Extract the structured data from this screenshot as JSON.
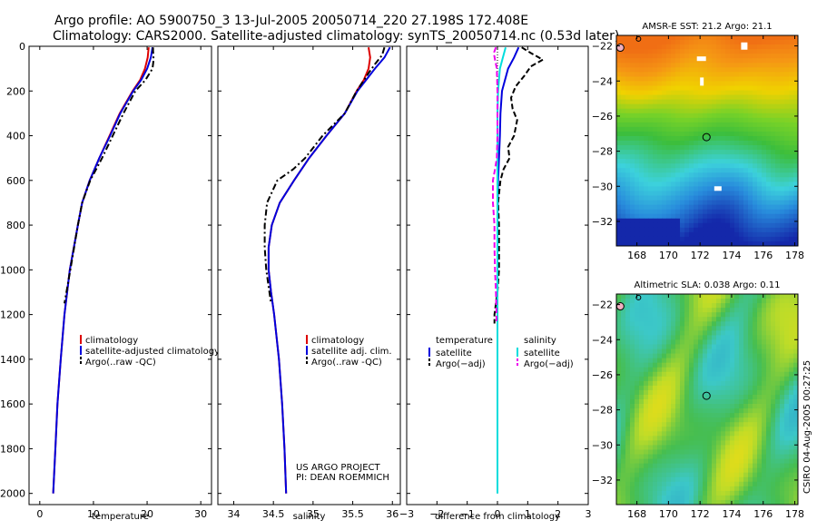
{
  "header": {
    "line1": "Argo profile: AO 5900750_3 13-Jul-2005 20050714_220 27.198S 172.408E",
    "line2": "Climatology: CARS2000. Satellite-adjusted climatology: synTS_20050714.nc (0.53d later)"
  },
  "credit": {
    "line1": "US ARGO PROJECT",
    "line2": "PI: DEAN ROEMMICH"
  },
  "side_label": "CSIRO 04-Aug-2005 00:27:25",
  "colors": {
    "climatology": "#dd0000",
    "satellite": "#0000dd",
    "argo": "#000000",
    "sal_sat": "#00dddd",
    "sal_adj": "#ee00ee"
  },
  "chart_data": [
    {
      "type": "line",
      "id": "temperature",
      "xlabel": "temperature",
      "xlim": [
        -2,
        32
      ],
      "ylim": [
        2050,
        0
      ],
      "xticks": [
        0,
        10,
        20,
        30
      ],
      "xtick_labels": [
        "0",
        "10",
        "20",
        "30"
      ],
      "yticks": [
        0,
        200,
        400,
        600,
        800,
        1000,
        1200,
        1400,
        1600,
        1800,
        2000
      ],
      "ytick_labels": [
        "0",
        "200",
        "400",
        "600",
        "800",
        "1000",
        "1200",
        "1400",
        "1600",
        "1800",
        "2000"
      ],
      "legend": [
        "climatology",
        "satellite-adjusted climatology",
        "Argo(..raw -QC)"
      ],
      "series": [
        {
          "name": "climatology",
          "style": "solid",
          "color": "#dd0000",
          "depth": [
            5,
            50,
            100,
            150,
            200,
            300,
            400,
            500,
            600,
            700,
            800,
            1000,
            1200,
            1400,
            1600,
            1800,
            2000
          ],
          "values": [
            20.3,
            20.1,
            19.6,
            18.7,
            17.3,
            14.9,
            13.0,
            11.1,
            9.3,
            7.9,
            7.1,
            5.6,
            4.6,
            3.9,
            3.3,
            2.9,
            2.5
          ]
        },
        {
          "name": "satellite-adjusted climatology",
          "style": "solid",
          "color": "#0000dd",
          "depth": [
            5,
            50,
            100,
            150,
            200,
            300,
            400,
            500,
            600,
            700,
            800,
            1000,
            1200,
            1400,
            1600,
            1800,
            2000
          ],
          "values": [
            21.0,
            20.7,
            20.0,
            18.9,
            17.4,
            15.0,
            13.1,
            11.1,
            9.3,
            7.9,
            7.1,
            5.6,
            4.6,
            3.9,
            3.3,
            2.9,
            2.5
          ]
        },
        {
          "name": "Argo(..raw -QC)",
          "style": "dashdot",
          "color": "#000000",
          "depth": [
            5,
            20,
            60,
            100,
            150,
            200,
            300,
            400,
            500,
            600,
            700,
            800,
            1000,
            1150
          ],
          "values": [
            21.1,
            21.1,
            21.2,
            21.0,
            19.7,
            17.8,
            15.6,
            13.6,
            11.6,
            9.4,
            7.9,
            7.1,
            5.7,
            4.6
          ]
        }
      ]
    },
    {
      "type": "line",
      "id": "salinity",
      "xlabel": "salinity",
      "xlim": [
        33.8,
        36.1
      ],
      "ylim": [
        2050,
        0
      ],
      "xticks": [
        34,
        34.5,
        35,
        35.5,
        36
      ],
      "xtick_labels": [
        "34",
        "34.5",
        "35",
        "35.5",
        "36"
      ],
      "legend": [
        "climatology",
        "satellite adj. clim.",
        "Argo(..raw -QC)"
      ],
      "series": [
        {
          "name": "climatology",
          "style": "solid",
          "color": "#dd0000",
          "depth": [
            5,
            50,
            100,
            150,
            200,
            300,
            400,
            500,
            600,
            700,
            800,
            900,
            1000,
            1100,
            1200,
            1400,
            1600,
            1800,
            2000
          ],
          "values": [
            35.7,
            35.72,
            35.7,
            35.64,
            35.55,
            35.4,
            35.17,
            34.95,
            34.76,
            34.58,
            34.48,
            34.44,
            34.44,
            34.47,
            34.51,
            34.57,
            34.61,
            34.64,
            34.66
          ]
        },
        {
          "name": "satellite adj. clim.",
          "style": "solid",
          "color": "#0000dd",
          "depth": [
            5,
            50,
            100,
            150,
            200,
            300,
            400,
            500,
            600,
            700,
            800,
            900,
            1000,
            1100,
            1200,
            1400,
            1600,
            1800,
            2000
          ],
          "values": [
            35.97,
            35.9,
            35.78,
            35.67,
            35.56,
            35.4,
            35.17,
            34.95,
            34.76,
            34.58,
            34.48,
            34.44,
            34.44,
            34.47,
            34.51,
            34.57,
            34.61,
            34.64,
            34.66
          ]
        },
        {
          "name": "Argo(..raw -QC)",
          "style": "dashdot",
          "color": "#000000",
          "depth": [
            5,
            40,
            80,
            120,
            200,
            300,
            400,
            500,
            550,
            600,
            700,
            800,
            900,
            1000,
            1100,
            1150
          ],
          "values": [
            35.9,
            35.87,
            35.78,
            35.7,
            35.55,
            35.4,
            35.12,
            34.9,
            34.75,
            34.55,
            34.42,
            34.39,
            34.39,
            34.41,
            34.45,
            34.47
          ]
        }
      ]
    },
    {
      "type": "line",
      "id": "difference",
      "xlabel": "difference from climatology",
      "xlim": [
        -3,
        3
      ],
      "ylim": [
        2050,
        0
      ],
      "xticks": [
        -3,
        -2,
        -1,
        0,
        1,
        2,
        3
      ],
      "xtick_labels": [
        "−3",
        "−2",
        "−1",
        "0",
        "1",
        "2",
        "3"
      ],
      "legend_left_title": "temperature",
      "legend_left": [
        "satellite",
        "Argo(−adj)"
      ],
      "legend_right_title": "salinity",
      "legend_right": [
        "satellite",
        "Argo(−adj)"
      ],
      "series": [
        {
          "name": "temperature satellite",
          "style": "solid",
          "color": "#0000dd",
          "depth": [
            5,
            50,
            100,
            200,
            300,
            400,
            500,
            600,
            800,
            1000,
            1200,
            1240
          ],
          "values": [
            0.7,
            0.55,
            0.35,
            0.15,
            0.1,
            0.08,
            0.05,
            0.02,
            0.0,
            0.0,
            0.0,
            0.0
          ]
        },
        {
          "name": "temperature Argo(-adj)",
          "style": "dashed",
          "color": "#000000",
          "depth": [
            5,
            30,
            60,
            90,
            130,
            180,
            230,
            280,
            330,
            400,
            450,
            500,
            550,
            600,
            700,
            800,
            900,
            1000,
            1100,
            1150,
            1200,
            1240
          ],
          "values": [
            0.8,
            1.1,
            1.5,
            1.1,
            0.9,
            0.6,
            0.45,
            0.5,
            0.65,
            0.55,
            0.35,
            0.4,
            0.2,
            0.1,
            0.02,
            0.05,
            0.05,
            0.05,
            0.0,
            -0.05,
            -0.1,
            -0.1
          ]
        },
        {
          "name": "salinity satellite",
          "style": "solid",
          "color": "#00dddd",
          "depth": [
            5,
            50,
            100,
            200,
            300,
            500,
            800,
            1200,
            1600,
            2000
          ],
          "values": [
            0.27,
            0.18,
            0.08,
            0.02,
            0.0,
            0.0,
            0.0,
            0.0,
            0.0,
            0.0
          ]
        },
        {
          "name": "salinity Argo(-adj)",
          "style": "dashed",
          "color": "#ee00ee",
          "depth": [
            5,
            30,
            60,
            100,
            200,
            300,
            400,
            500,
            550,
            600,
            700,
            800,
            900,
            1000,
            1100,
            1200,
            1240
          ],
          "values": [
            -0.05,
            -0.12,
            -0.08,
            -0.02,
            0.0,
            0.0,
            0.0,
            -0.02,
            -0.08,
            -0.15,
            -0.15,
            -0.1,
            -0.1,
            -0.08,
            -0.05,
            -0.03,
            -0.03
          ]
        }
      ]
    },
    {
      "type": "heatmap",
      "id": "sst-map",
      "title": "AMSR-E SST: 21.2 Argo: 21.1",
      "xlim": [
        166.7,
        178.2
      ],
      "ylim": [
        -33.4,
        -21.4
      ],
      "xticks": [
        168,
        170,
        172,
        174,
        176,
        178
      ],
      "xtick_labels": [
        "168",
        "170",
        "172",
        "174",
        "176",
        "178"
      ],
      "yticks": [
        -22,
        -24,
        -26,
        -28,
        -30,
        -32
      ],
      "ytick_labels": [
        "−22",
        "−24",
        "−26",
        "−28",
        "−30",
        "−32"
      ],
      "marker": {
        "lon": 172.408,
        "lat": -27.198
      }
    },
    {
      "type": "heatmap",
      "id": "sla-map",
      "title": "Altimetric SLA: 0.038 Argo: 0.11",
      "xlim": [
        166.7,
        178.2
      ],
      "ylim": [
        -33.4,
        -21.4
      ],
      "xticks": [
        168,
        170,
        172,
        174,
        176,
        178
      ],
      "xtick_labels": [
        "168",
        "170",
        "172",
        "174",
        "176",
        "178"
      ],
      "yticks": [
        -22,
        -24,
        -26,
        -28,
        -30,
        -32
      ],
      "ytick_labels": [
        "−22",
        "−24",
        "−26",
        "−28",
        "−30",
        "−32"
      ],
      "marker": {
        "lon": 172.408,
        "lat": -27.198
      }
    }
  ]
}
